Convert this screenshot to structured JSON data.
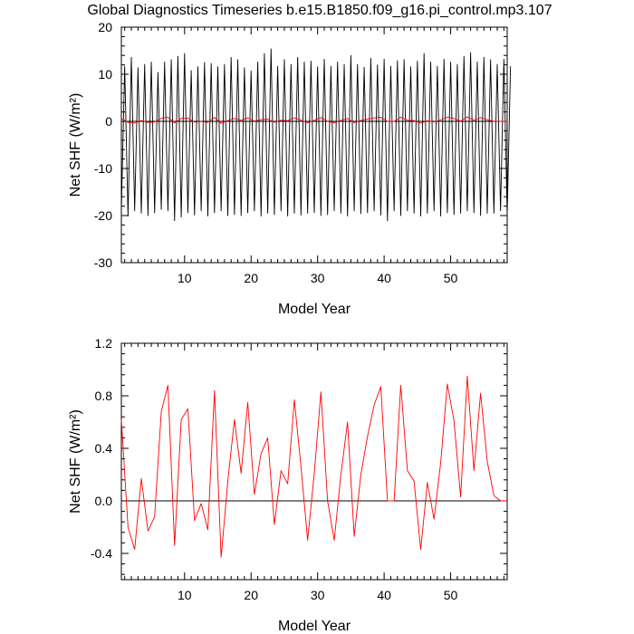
{
  "title": "Global Diagnostics Timeseries b.e15.B1850.f09_g16.pi_control.mp3.107",
  "colors": {
    "monthly": "#000000",
    "annual": "#ff0000",
    "zero_line": "#000000"
  },
  "chart_data": [
    {
      "type": "line",
      "xlabel": "Model Year",
      "ylabel": "Net SHF (W/m²)",
      "xlim": [
        0.5,
        58.5
      ],
      "ylim": [
        -30,
        20
      ],
      "xticks": [
        10,
        20,
        30,
        40,
        50
      ],
      "yticks": [
        -30,
        -20,
        -10,
        0,
        10,
        20
      ],
      "reference_line": 0,
      "series": [
        {
          "color": "#000000",
          "x_start": 0.5,
          "x_step": 0.5,
          "values": [
            -19.0,
            11.7,
            -20.1,
            13.6,
            -19.0,
            11.4,
            -19.5,
            12.1,
            -20.0,
            12.6,
            -19.4,
            10.4,
            -18.7,
            12.6,
            -19.0,
            13.1,
            -21.1,
            13.8,
            -20.3,
            14.4,
            -19.4,
            10.8,
            -19.9,
            11.6,
            -19.0,
            12.5,
            -20.1,
            12.3,
            -19.4,
            11.6,
            -19.0,
            12.1,
            -20.0,
            13.6,
            -19.8,
            13.1,
            -20.0,
            11.4,
            -19.4,
            10.7,
            -19.0,
            12.6,
            -20.1,
            14.4,
            -19.5,
            15.4,
            -19.8,
            11.7,
            -19.0,
            13.1,
            -20.1,
            12.1,
            -19.5,
            13.6,
            -19.9,
            12.6,
            -19.5,
            12.8,
            -19.4,
            11.6,
            -20.0,
            13.2,
            -19.8,
            11.7,
            -19.0,
            12.6,
            -19.5,
            12.1,
            -20.1,
            14.0,
            -19.0,
            12.1,
            -19.6,
            11.5,
            -19.4,
            13.4,
            -19.0,
            12.0,
            -19.9,
            13.2,
            -21.1,
            11.7,
            -19.0,
            12.9,
            -20.0,
            13.1,
            -19.0,
            11.6,
            -19.5,
            12.8,
            -20.1,
            14.4,
            -19.5,
            12.6,
            -19.0,
            11.7,
            -20.1,
            13.2,
            -19.4,
            12.6,
            -19.8,
            12.1,
            -19.5,
            13.8,
            -19.0,
            14.6,
            -19.4,
            12.6,
            -20.0,
            13.6,
            -19.5,
            13.1,
            -19.5,
            12.1,
            -19.0,
            13.2,
            -19.9,
            11.7
          ]
        },
        {
          "color": "#ff0000",
          "x": [
            0.5,
            1.5,
            2.5,
            3.5,
            4.5,
            5.5,
            6.5,
            7.5,
            8.5,
            9.5,
            10.5,
            11.5,
            12.5,
            13.5,
            14.5,
            15.5,
            16.5,
            17.5,
            18.5,
            19.5,
            20.5,
            21.5,
            22.5,
            23.5,
            24.5,
            25.5,
            26.5,
            27.5,
            28.5,
            29.5,
            30.5,
            31.5,
            32.5,
            33.5,
            34.5,
            35.5,
            36.5,
            37.5,
            38.5,
            39.5,
            40.5,
            41.5,
            42.5,
            43.5,
            44.5,
            45.5,
            46.5,
            47.5,
            48.5,
            49.5,
            50.5,
            51.5,
            52.5,
            53.5,
            54.5,
            55.5,
            56.5,
            57.5,
            58.5
          ],
          "values": [
            0.62,
            -0.2,
            -0.37,
            0.17,
            -0.23,
            -0.12,
            0.68,
            0.88,
            -0.34,
            0.62,
            0.7,
            -0.15,
            -0.02,
            -0.22,
            0.84,
            -0.43,
            0.15,
            0.62,
            0.21,
            0.75,
            0.05,
            0.36,
            0.48,
            -0.18,
            0.23,
            0.13,
            0.77,
            0.26,
            -0.3,
            0.21,
            0.83,
            0.0,
            -0.3,
            0.2,
            0.6,
            -0.27,
            0.2,
            0.49,
            0.73,
            0.87,
            0.0,
            0.0,
            0.88,
            0.23,
            0.15,
            -0.37,
            0.14,
            -0.14,
            0.29,
            0.89,
            0.61,
            0.03,
            0.95,
            0.23,
            0.82,
            0.3,
            0.04,
            0.0,
            0.0
          ]
        }
      ]
    },
    {
      "type": "line",
      "xlabel": "Model Year",
      "ylabel": "Net SHF (W/m²)",
      "xlim": [
        0.5,
        58.5
      ],
      "ylim": [
        -0.6,
        1.2
      ],
      "xticks": [
        10,
        20,
        30,
        40,
        50
      ],
      "yticks": [
        -0.4,
        0.0,
        0.4,
        0.8,
        1.2
      ],
      "ytick_labels": [
        "-0.4",
        "0.0",
        "0.4",
        "0.8",
        "1.2"
      ],
      "reference_line": 0,
      "series": [
        {
          "color": "#ff0000",
          "x": [
            0.5,
            1.5,
            2.5,
            3.5,
            4.5,
            5.5,
            6.5,
            7.5,
            8.5,
            9.5,
            10.5,
            11.5,
            12.5,
            13.5,
            14.5,
            15.5,
            16.5,
            17.5,
            18.5,
            19.5,
            20.5,
            21.5,
            22.5,
            23.5,
            24.5,
            25.5,
            26.5,
            27.5,
            28.5,
            29.5,
            30.5,
            31.5,
            32.5,
            33.5,
            34.5,
            35.5,
            36.5,
            37.5,
            38.5,
            39.5,
            40.5,
            41.5,
            42.5,
            43.5,
            44.5,
            45.5,
            46.5,
            47.5,
            48.5,
            49.5,
            50.5,
            51.5,
            52.5,
            53.5,
            54.5,
            55.5,
            56.5,
            57.5,
            58.5
          ],
          "values": [
            0.62,
            -0.2,
            -0.37,
            0.17,
            -0.23,
            -0.12,
            0.68,
            0.88,
            -0.34,
            0.62,
            0.7,
            -0.15,
            -0.02,
            -0.22,
            0.84,
            -0.43,
            0.15,
            0.62,
            0.21,
            0.75,
            0.05,
            0.36,
            0.48,
            -0.18,
            0.23,
            0.13,
            0.77,
            0.26,
            -0.3,
            0.21,
            0.83,
            0.0,
            -0.3,
            0.2,
            0.6,
            -0.27,
            0.2,
            0.49,
            0.73,
            0.87,
            0.0,
            0.0,
            0.88,
            0.23,
            0.15,
            -0.37,
            0.14,
            -0.14,
            0.29,
            0.89,
            0.61,
            0.03,
            0.95,
            0.23,
            0.82,
            0.3,
            0.04,
            0.0,
            0.0
          ]
        }
      ]
    }
  ]
}
